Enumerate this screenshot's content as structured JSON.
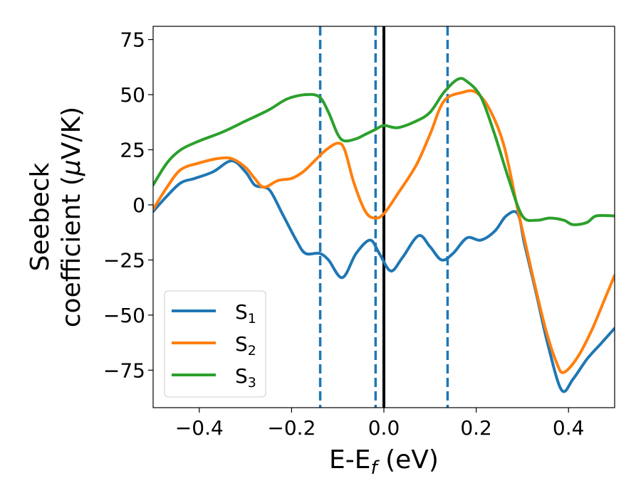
{
  "chart_data": {
    "type": "line",
    "xlabel": {
      "main": "E-E",
      "sub": "f",
      "unit": " (eV)"
    },
    "ylabel": {
      "line1": "Seebeck",
      "line2_prefix": "coefficient  (",
      "mu": "μ",
      "line2_suffix": "V/K)"
    },
    "xlim": [
      -0.5,
      0.5
    ],
    "ylim": [
      -92,
      81
    ],
    "xticks": [
      -0.4,
      -0.2,
      0.0,
      0.2,
      0.4
    ],
    "xtick_labels": [
      "−0.4",
      "−0.2",
      "0.0",
      "0.2",
      "0.4"
    ],
    "yticks": [
      75,
      50,
      25,
      0,
      -25,
      -50,
      -75
    ],
    "ytick_labels": [
      "75",
      "50",
      "25",
      "0",
      "−25",
      "−50",
      "−75"
    ],
    "grid": false,
    "legend_position": "lower-left",
    "vlines": [
      {
        "x": -0.138,
        "style": "dashed",
        "color": "#1f77b4"
      },
      {
        "x": -0.018,
        "style": "dashed",
        "color": "#1f77b4"
      },
      {
        "x": 0.0,
        "style": "solid",
        "color": "#000000"
      },
      {
        "x": 0.138,
        "style": "dashed",
        "color": "#1f77b4"
      }
    ],
    "series": [
      {
        "name": "S",
        "sub": "1",
        "color": "#1f77b4",
        "points": [
          [
            -0.5,
            -3
          ],
          [
            -0.47,
            4
          ],
          [
            -0.44,
            10
          ],
          [
            -0.41,
            12
          ],
          [
            -0.37,
            15
          ],
          [
            -0.33,
            20
          ],
          [
            -0.3,
            15
          ],
          [
            -0.28,
            9
          ],
          [
            -0.26,
            8
          ],
          [
            -0.245,
            6
          ],
          [
            -0.22,
            -4
          ],
          [
            -0.19,
            -16
          ],
          [
            -0.17,
            -22
          ],
          [
            -0.14,
            -22
          ],
          [
            -0.12,
            -25
          ],
          [
            -0.09,
            -33
          ],
          [
            -0.06,
            -22
          ],
          [
            -0.03,
            -16
          ],
          [
            -0.01,
            -22
          ],
          [
            0.015,
            -30
          ],
          [
            0.04,
            -24
          ],
          [
            0.075,
            -14
          ],
          [
            0.1,
            -19
          ],
          [
            0.125,
            -25
          ],
          [
            0.15,
            -22
          ],
          [
            0.18,
            -15
          ],
          [
            0.21,
            -16
          ],
          [
            0.24,
            -12
          ],
          [
            0.265,
            -5
          ],
          [
            0.29,
            -4
          ],
          [
            0.305,
            -18
          ],
          [
            0.33,
            -40
          ],
          [
            0.355,
            -63
          ],
          [
            0.385,
            -84
          ],
          [
            0.41,
            -79
          ],
          [
            0.44,
            -70
          ],
          [
            0.47,
            -63
          ],
          [
            0.5,
            -56
          ]
        ]
      },
      {
        "name": "S",
        "sub": "2",
        "color": "#ff7f0e",
        "points": [
          [
            -0.5,
            -2
          ],
          [
            -0.47,
            8
          ],
          [
            -0.44,
            16
          ],
          [
            -0.4,
            19
          ],
          [
            -0.36,
            21
          ],
          [
            -0.33,
            21
          ],
          [
            -0.3,
            17
          ],
          [
            -0.28,
            12
          ],
          [
            -0.26,
            8
          ],
          [
            -0.23,
            11
          ],
          [
            -0.2,
            12
          ],
          [
            -0.175,
            15
          ],
          [
            -0.15,
            20
          ],
          [
            -0.125,
            25
          ],
          [
            -0.1,
            28
          ],
          [
            -0.085,
            25
          ],
          [
            -0.065,
            10
          ],
          [
            -0.04,
            -3
          ],
          [
            -0.02,
            -6
          ],
          [
            0.0,
            -4
          ],
          [
            0.03,
            5
          ],
          [
            0.07,
            18
          ],
          [
            0.1,
            32
          ],
          [
            0.13,
            47
          ],
          [
            0.17,
            51
          ],
          [
            0.2,
            51
          ],
          [
            0.23,
            43
          ],
          [
            0.26,
            27
          ],
          [
            0.29,
            -2
          ],
          [
            0.32,
            -30
          ],
          [
            0.35,
            -56
          ],
          [
            0.375,
            -72
          ],
          [
            0.39,
            -76
          ],
          [
            0.42,
            -69
          ],
          [
            0.45,
            -57
          ],
          [
            0.48,
            -42
          ],
          [
            0.5,
            -32
          ]
        ]
      },
      {
        "name": "S",
        "sub": "3",
        "color": "#2ca02c",
        "points": [
          [
            -0.5,
            9
          ],
          [
            -0.47,
            19
          ],
          [
            -0.44,
            25
          ],
          [
            -0.4,
            29
          ],
          [
            -0.35,
            33
          ],
          [
            -0.3,
            38
          ],
          [
            -0.25,
            43
          ],
          [
            -0.21,
            48
          ],
          [
            -0.17,
            50
          ],
          [
            -0.14,
            49
          ],
          [
            -0.12,
            42
          ],
          [
            -0.1,
            32
          ],
          [
            -0.085,
            29
          ],
          [
            -0.06,
            30
          ],
          [
            -0.04,
            32
          ],
          [
            -0.02,
            34
          ],
          [
            0.0,
            36
          ],
          [
            0.03,
            35
          ],
          [
            0.07,
            38
          ],
          [
            0.1,
            42
          ],
          [
            0.13,
            51
          ],
          [
            0.16,
            57
          ],
          [
            0.18,
            56
          ],
          [
            0.21,
            49
          ],
          [
            0.24,
            32
          ],
          [
            0.27,
            12
          ],
          [
            0.3,
            -5
          ],
          [
            0.33,
            -7
          ],
          [
            0.36,
            -6
          ],
          [
            0.39,
            -7
          ],
          [
            0.41,
            -9
          ],
          [
            0.44,
            -8
          ],
          [
            0.46,
            -5
          ],
          [
            0.5,
            -5
          ]
        ]
      }
    ]
  }
}
